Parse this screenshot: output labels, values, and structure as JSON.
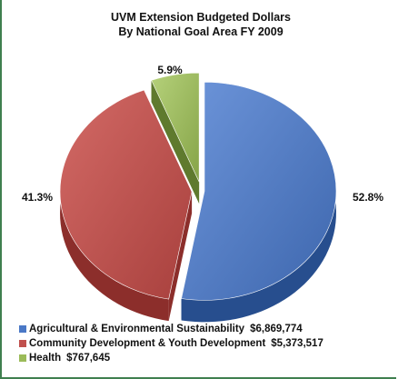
{
  "chart_data": {
    "type": "pie",
    "title_line1": "UVM Extension Budgeted Dollars",
    "title_line2": "By National Goal Area FY 2009",
    "slices": [
      {
        "name": "Agricultural & Environmental Sustainability",
        "value": 6869774,
        "amount_label": "$6,869,774",
        "percent": 52.8,
        "percent_label": "52.8%",
        "color": "#4a78c6",
        "side_color": "#274e8e"
      },
      {
        "name": "Community Development & Youth Development",
        "value": 5373517,
        "amount_label": "$5,373,517",
        "percent": 41.3,
        "percent_label": "41.3%",
        "color": "#c0504d",
        "side_color": "#8c2e2b"
      },
      {
        "name": "Health",
        "value": 767645,
        "amount_label": "$767,645",
        "percent": 5.9,
        "percent_label": "5.9%",
        "color": "#9bbb59",
        "side_color": "#5f7a2e"
      }
    ],
    "legend_position": "bottom-left"
  }
}
